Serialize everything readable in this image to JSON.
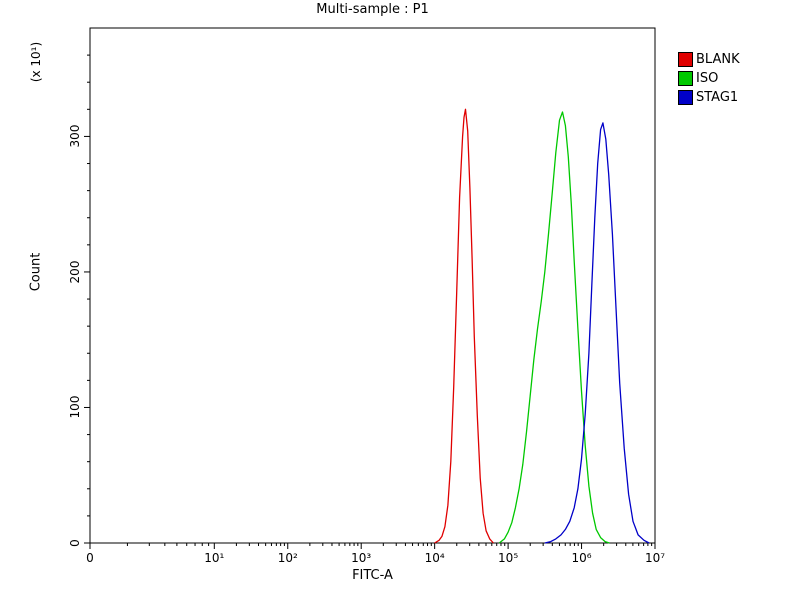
{
  "chart_data": {
    "type": "line",
    "title": "Multi-sample : P1",
    "xlabel": "FITC-A",
    "ylabel": "Count",
    "y_unit": "(x 10¹)",
    "x_scale": "log",
    "xlim_exponents": [
      0,
      7
    ],
    "ylim": [
      0,
      380
    ],
    "grid": false,
    "legend_position": "top-right-outside",
    "x_ticks": [
      {
        "label": "0",
        "exp": null
      },
      {
        "label": "10¹",
        "exp": 1
      },
      {
        "label": "10²",
        "exp": 2
      },
      {
        "label": "10³",
        "exp": 3
      },
      {
        "label": "10⁴",
        "exp": 4
      },
      {
        "label": "10⁵",
        "exp": 5
      },
      {
        "label": "10⁶",
        "exp": 6
      },
      {
        "label": "10⁷",
        "exp": 7
      }
    ],
    "y_ticks": [
      {
        "label": "0",
        "value": 0
      },
      {
        "label": "100",
        "value": 100
      },
      {
        "label": "200",
        "value": 200
      },
      {
        "label": "300",
        "value": 300
      }
    ],
    "legend": [
      {
        "name": "BLANK",
        "color": "#e00000"
      },
      {
        "name": "ISO",
        "color": "#00c800"
      },
      {
        "name": "STAG1",
        "color": "#0000c8"
      }
    ],
    "series": [
      {
        "name": "BLANK",
        "color": "#e00000",
        "peak_x_log10": 4.42,
        "peak_count": 320,
        "points": [
          [
            4.0,
            0
          ],
          [
            4.06,
            2
          ],
          [
            4.1,
            5
          ],
          [
            4.14,
            12
          ],
          [
            4.18,
            28
          ],
          [
            4.22,
            60
          ],
          [
            4.26,
            115
          ],
          [
            4.3,
            185
          ],
          [
            4.34,
            255
          ],
          [
            4.38,
            300
          ],
          [
            4.4,
            314
          ],
          [
            4.42,
            320
          ],
          [
            4.45,
            304
          ],
          [
            4.48,
            262
          ],
          [
            4.51,
            210
          ],
          [
            4.54,
            152
          ],
          [
            4.58,
            94
          ],
          [
            4.62,
            48
          ],
          [
            4.66,
            22
          ],
          [
            4.7,
            9
          ],
          [
            4.75,
            3
          ],
          [
            4.8,
            0
          ]
        ]
      },
      {
        "name": "ISO",
        "color": "#00c800",
        "peak_x_log10": 5.74,
        "peak_count": 318,
        "points": [
          [
            4.88,
            0
          ],
          [
            4.95,
            3
          ],
          [
            5.0,
            8
          ],
          [
            5.05,
            15
          ],
          [
            5.1,
            26
          ],
          [
            5.15,
            40
          ],
          [
            5.2,
            58
          ],
          [
            5.25,
            82
          ],
          [
            5.3,
            108
          ],
          [
            5.35,
            135
          ],
          [
            5.4,
            158
          ],
          [
            5.45,
            178
          ],
          [
            5.5,
            200
          ],
          [
            5.55,
            228
          ],
          [
            5.6,
            258
          ],
          [
            5.65,
            288
          ],
          [
            5.7,
            312
          ],
          [
            5.74,
            318
          ],
          [
            5.78,
            308
          ],
          [
            5.82,
            285
          ],
          [
            5.86,
            250
          ],
          [
            5.9,
            208
          ],
          [
            5.95,
            158
          ],
          [
            6.0,
            112
          ],
          [
            6.05,
            72
          ],
          [
            6.1,
            42
          ],
          [
            6.15,
            22
          ],
          [
            6.2,
            10
          ],
          [
            6.26,
            4
          ],
          [
            6.32,
            1
          ],
          [
            6.38,
            0
          ]
        ]
      },
      {
        "name": "STAG1",
        "color": "#0000c8",
        "peak_x_log10": 6.29,
        "peak_count": 310,
        "points": [
          [
            5.5,
            0
          ],
          [
            5.58,
            1
          ],
          [
            5.65,
            3
          ],
          [
            5.72,
            6
          ],
          [
            5.78,
            10
          ],
          [
            5.84,
            16
          ],
          [
            5.9,
            26
          ],
          [
            5.95,
            40
          ],
          [
            6.0,
            62
          ],
          [
            6.05,
            95
          ],
          [
            6.1,
            140
          ],
          [
            6.14,
            190
          ],
          [
            6.18,
            240
          ],
          [
            6.22,
            280
          ],
          [
            6.26,
            305
          ],
          [
            6.29,
            310
          ],
          [
            6.33,
            298
          ],
          [
            6.37,
            272
          ],
          [
            6.42,
            228
          ],
          [
            6.47,
            172
          ],
          [
            6.52,
            118
          ],
          [
            6.58,
            70
          ],
          [
            6.64,
            36
          ],
          [
            6.7,
            16
          ],
          [
            6.77,
            6
          ],
          [
            6.85,
            2
          ],
          [
            6.92,
            0
          ]
        ]
      }
    ]
  }
}
